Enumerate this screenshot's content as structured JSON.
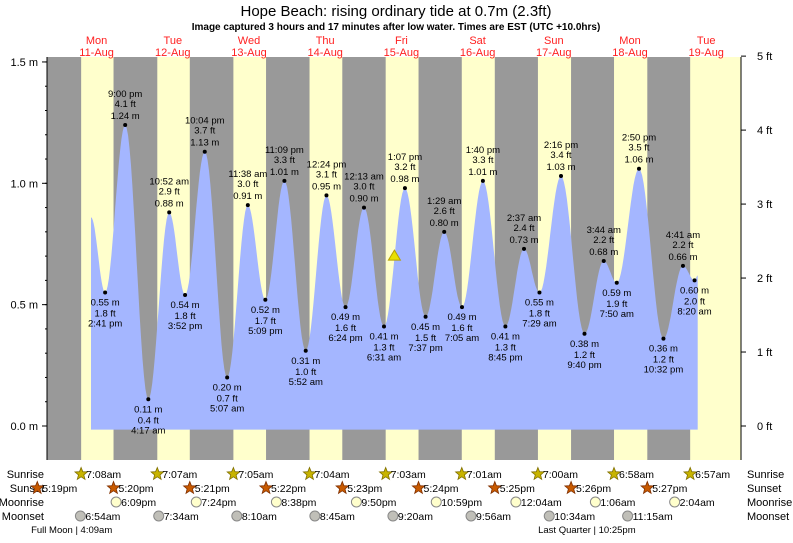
{
  "title": "Hope Beach: rising  ordinary tide at 0.7m (2.3ft)",
  "subtitle": "Image captured 3 hours and 17 minutes after low water. Times are EST (UTC +10.0hrs)",
  "colors": {
    "night": "#999999",
    "day": "#ffffcc",
    "water": "#a4b6ff",
    "day_label": "#ff2020",
    "sunrise": "#c8b400",
    "sunset": "#c85a00",
    "moonrise": "#ffffcc",
    "moonset": "#c0bfb8"
  },
  "days": [
    {
      "dow": "Mon",
      "date": "11-Aug"
    },
    {
      "dow": "Tue",
      "date": "12-Aug"
    },
    {
      "dow": "Wed",
      "date": "13-Aug"
    },
    {
      "dow": "Thu",
      "date": "14-Aug"
    },
    {
      "dow": "Fri",
      "date": "15-Aug"
    },
    {
      "dow": "Sat",
      "date": "16-Aug"
    },
    {
      "dow": "Sun",
      "date": "17-Aug"
    },
    {
      "dow": "Mon",
      "date": "18-Aug"
    },
    {
      "dow": "Tue",
      "date": "19-Aug"
    }
  ],
  "chart_data": {
    "type": "area",
    "y_left": {
      "unit": "m",
      "ticks": [
        {
          "value": 1.5,
          "label": "1.5 m"
        },
        {
          "value": 1.0,
          "label": "1.0 m"
        },
        {
          "value": 0.5,
          "label": "0.5 m"
        },
        {
          "value": 0.0,
          "label": "0.0 m"
        }
      ]
    },
    "y_right": {
      "unit": "ft",
      "ticks": [
        {
          "value": 5,
          "label": "5 ft"
        },
        {
          "value": 4,
          "label": "4 ft"
        },
        {
          "value": 3,
          "label": "3 ft"
        },
        {
          "value": 2,
          "label": "2 ft"
        },
        {
          "value": 1,
          "label": "1 ft"
        },
        {
          "value": 0,
          "label": "0 ft"
        }
      ]
    },
    "ylim_m": [
      0,
      1.5
    ],
    "curve_start": {
      "date": "11-Aug",
      "time": "10:15 am",
      "m": 0.86
    },
    "curve_end": {
      "date": "19-Aug",
      "time": "9:20 am",
      "m": 0.62
    },
    "extrema": [
      {
        "type": "low",
        "date": "11-Aug",
        "time": "2:41 pm",
        "m": "0.55 m",
        "ft": "1.8 ft",
        "value": 0.55
      },
      {
        "type": "high",
        "date": "11-Aug",
        "time": "9:00 pm",
        "m": "1.24 m",
        "ft": "4.1 ft",
        "value": 1.24
      },
      {
        "type": "low",
        "date": "12-Aug",
        "time": "4:17 am",
        "m": "0.11 m",
        "ft": "0.4 ft",
        "value": 0.11
      },
      {
        "type": "high",
        "date": "12-Aug",
        "time": "10:52 am",
        "m": "0.88 m",
        "ft": "2.9 ft",
        "value": 0.88
      },
      {
        "type": "low",
        "date": "12-Aug",
        "time": "3:52 pm",
        "m": "0.54 m",
        "ft": "1.8 ft",
        "value": 0.54
      },
      {
        "type": "high",
        "date": "12-Aug",
        "time": "10:04 pm",
        "m": "1.13 m",
        "ft": "3.7 ft",
        "value": 1.13
      },
      {
        "type": "low",
        "date": "13-Aug",
        "time": "5:07 am",
        "m": "0.20 m",
        "ft": "0.7 ft",
        "value": 0.2
      },
      {
        "type": "high",
        "date": "13-Aug",
        "time": "11:38 am",
        "m": "0.91 m",
        "ft": "3.0 ft",
        "value": 0.91
      },
      {
        "type": "low",
        "date": "13-Aug",
        "time": "5:09 pm",
        "m": "0.52 m",
        "ft": "1.7 ft",
        "value": 0.52
      },
      {
        "type": "high",
        "date": "13-Aug",
        "time": "11:09 pm",
        "m": "1.01 m",
        "ft": "3.3 ft",
        "value": 1.01
      },
      {
        "type": "low",
        "date": "14-Aug",
        "time": "5:52 am",
        "m": "0.31 m",
        "ft": "1.0 ft",
        "value": 0.31
      },
      {
        "type": "high",
        "date": "14-Aug",
        "time": "12:24 pm",
        "m": "0.95 m",
        "ft": "3.1 ft",
        "value": 0.95
      },
      {
        "type": "low",
        "date": "14-Aug",
        "time": "6:24 pm",
        "m": "0.49 m",
        "ft": "1.6 ft",
        "value": 0.49
      },
      {
        "type": "high",
        "date": "15-Aug",
        "time": "12:13 am",
        "m": "0.90 m",
        "ft": "3.0 ft",
        "value": 0.9
      },
      {
        "type": "low",
        "date": "15-Aug",
        "time": "6:31 am",
        "m": "0.41 m",
        "ft": "1.3 ft",
        "value": 0.41
      },
      {
        "type": "high",
        "date": "15-Aug",
        "time": "1:07 pm",
        "m": "0.98 m",
        "ft": "3.2 ft",
        "value": 0.98
      },
      {
        "type": "low",
        "date": "15-Aug",
        "time": "7:37 pm",
        "m": "0.45 m",
        "ft": "1.5 ft",
        "value": 0.45
      },
      {
        "type": "high",
        "date": "16-Aug",
        "time": "1:29 am",
        "m": "0.80 m",
        "ft": "2.6 ft",
        "value": 0.8
      },
      {
        "type": "low",
        "date": "16-Aug",
        "time": "7:05 am",
        "m": "0.49 m",
        "ft": "1.6 ft",
        "value": 0.49
      },
      {
        "type": "high",
        "date": "16-Aug",
        "time": "1:40 pm",
        "m": "1.01 m",
        "ft": "3.3 ft",
        "value": 1.01
      },
      {
        "type": "low",
        "date": "16-Aug",
        "time": "8:45 pm",
        "m": "0.41 m",
        "ft": "1.3 ft",
        "value": 0.41
      },
      {
        "type": "high",
        "date": "17-Aug",
        "time": "2:37 am",
        "m": "0.73 m",
        "ft": "2.4 ft",
        "value": 0.73
      },
      {
        "type": "low",
        "date": "17-Aug",
        "time": "7:29 am",
        "m": "0.55 m",
        "ft": "1.8 ft",
        "value": 0.55
      },
      {
        "type": "high",
        "date": "17-Aug",
        "time": "2:16 pm",
        "m": "1.03 m",
        "ft": "3.4 ft",
        "value": 1.03
      },
      {
        "type": "low",
        "date": "17-Aug",
        "time": "9:40 pm",
        "m": "0.38 m",
        "ft": "1.2 ft",
        "value": 0.38
      },
      {
        "type": "high",
        "date": "18-Aug",
        "time": "3:44 am",
        "m": "0.68 m",
        "ft": "2.2 ft",
        "value": 0.68
      },
      {
        "type": "low",
        "date": "18-Aug",
        "time": "7:50 am",
        "m": "0.59 m",
        "ft": "1.9 ft",
        "value": 0.59
      },
      {
        "type": "high",
        "date": "18-Aug",
        "time": "2:50 pm",
        "m": "1.06 m",
        "ft": "3.5 ft",
        "value": 1.06
      },
      {
        "type": "low",
        "date": "18-Aug",
        "time": "10:32 pm",
        "m": "0.36 m",
        "ft": "1.2 ft",
        "value": 0.36
      },
      {
        "type": "high",
        "date": "19-Aug",
        "time": "4:41 am",
        "m": "0.66 m",
        "ft": "2.2 ft",
        "value": 0.66
      },
      {
        "type": "low",
        "date": "19-Aug",
        "time": "8:20 am",
        "m": "0.60 m",
        "ft": "2.0 ft",
        "value": 0.6
      }
    ],
    "current": {
      "date": "15-Aug",
      "time": "9:48 am",
      "m": 0.7
    }
  },
  "astro": {
    "labels": {
      "sunrise": "Sunrise",
      "sunset": "Sunset",
      "moonrise": "Moonrise",
      "moonset": "Moonset"
    },
    "sunrise": [
      {
        "date": "11-Aug",
        "time": "7:08am"
      },
      {
        "date": "12-Aug",
        "time": "7:07am"
      },
      {
        "date": "13-Aug",
        "time": "7:05am"
      },
      {
        "date": "14-Aug",
        "time": "7:04am"
      },
      {
        "date": "15-Aug",
        "time": "7:03am"
      },
      {
        "date": "16-Aug",
        "time": "7:01am"
      },
      {
        "date": "17-Aug",
        "time": "7:00am"
      },
      {
        "date": "18-Aug",
        "time": "6:58am"
      },
      {
        "date": "19-Aug",
        "time": "6:57am"
      }
    ],
    "sunset": [
      {
        "date": "10-Aug",
        "time": "5:19pm"
      },
      {
        "date": "11-Aug",
        "time": "5:20pm"
      },
      {
        "date": "12-Aug",
        "time": "5:21pm"
      },
      {
        "date": "13-Aug",
        "time": "5:22pm"
      },
      {
        "date": "14-Aug",
        "time": "5:23pm"
      },
      {
        "date": "15-Aug",
        "time": "5:24pm"
      },
      {
        "date": "16-Aug",
        "time": "5:25pm"
      },
      {
        "date": "17-Aug",
        "time": "5:26pm"
      },
      {
        "date": "18-Aug",
        "time": "5:27pm"
      }
    ],
    "moonrise": [
      {
        "date": "11-Aug",
        "time": "6:09pm"
      },
      {
        "date": "12-Aug",
        "time": "7:24pm"
      },
      {
        "date": "13-Aug",
        "time": "8:38pm"
      },
      {
        "date": "14-Aug",
        "time": "9:50pm"
      },
      {
        "date": "15-Aug",
        "time": "10:59pm"
      },
      {
        "date": "17-Aug",
        "time": "12:04am"
      },
      {
        "date": "18-Aug",
        "time": "1:06am"
      },
      {
        "date": "19-Aug",
        "time": "2:04am"
      }
    ],
    "moonset": [
      {
        "date": "11-Aug",
        "time": "6:54am"
      },
      {
        "date": "12-Aug",
        "time": "7:34am"
      },
      {
        "date": "13-Aug",
        "time": "8:10am"
      },
      {
        "date": "14-Aug",
        "time": "8:45am"
      },
      {
        "date": "15-Aug",
        "time": "9:20am"
      },
      {
        "date": "16-Aug",
        "time": "9:56am"
      },
      {
        "date": "17-Aug",
        "time": "10:34am"
      },
      {
        "date": "18-Aug",
        "time": "11:15am"
      }
    ],
    "moon_phases": [
      {
        "date": "11-Aug",
        "time": "4:09am",
        "text": "Full Moon | 4:09am"
      },
      {
        "date": "17-Aug",
        "time": "10:25pm",
        "text": "Last Quarter | 10:25pm"
      }
    ]
  }
}
